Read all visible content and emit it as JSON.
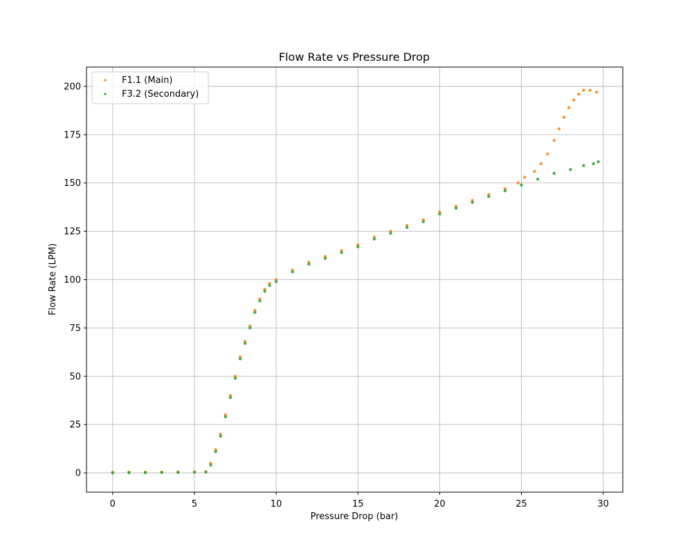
{
  "chart_data": {
    "type": "scatter",
    "title": "Flow Rate vs Pressure Drop",
    "xlabel": "Pressure Drop (bar)",
    "ylabel": "Flow Rate (LPM)",
    "xlim": [
      -1.6,
      31.2
    ],
    "ylim": [
      -10,
      210
    ],
    "xticks": [
      0,
      5,
      10,
      15,
      20,
      25,
      30
    ],
    "yticks": [
      0,
      25,
      50,
      75,
      100,
      125,
      150,
      175,
      200
    ],
    "grid": true,
    "legend_position": "upper-left",
    "series": [
      {
        "name": "F1.1 (Main)",
        "color": "#ff7f0e",
        "points": [
          [
            0.0,
            0.3
          ],
          [
            1.0,
            0.4
          ],
          [
            2.0,
            0.4
          ],
          [
            3.0,
            0.4
          ],
          [
            4.0,
            0.5
          ],
          [
            5.0,
            0.5
          ],
          [
            5.7,
            0.6
          ],
          [
            6.0,
            5
          ],
          [
            6.3,
            12
          ],
          [
            6.6,
            20
          ],
          [
            6.9,
            30
          ],
          [
            7.2,
            40
          ],
          [
            7.5,
            50
          ],
          [
            7.8,
            60
          ],
          [
            8.1,
            68
          ],
          [
            8.4,
            76
          ],
          [
            8.7,
            84
          ],
          [
            9.0,
            90
          ],
          [
            9.3,
            95
          ],
          [
            9.6,
            98
          ],
          [
            10.0,
            100
          ],
          [
            11.0,
            105
          ],
          [
            12.0,
            109
          ],
          [
            13.0,
            112
          ],
          [
            14.0,
            115
          ],
          [
            15.0,
            118
          ],
          [
            16.0,
            122
          ],
          [
            17.0,
            125
          ],
          [
            18.0,
            128
          ],
          [
            19.0,
            131
          ],
          [
            20.0,
            135
          ],
          [
            21.0,
            138
          ],
          [
            22.0,
            141
          ],
          [
            23.0,
            144
          ],
          [
            24.0,
            147
          ],
          [
            24.8,
            150
          ],
          [
            25.2,
            153
          ],
          [
            25.8,
            156
          ],
          [
            26.2,
            160
          ],
          [
            26.6,
            165
          ],
          [
            27.0,
            172
          ],
          [
            27.3,
            178
          ],
          [
            27.6,
            184
          ],
          [
            27.9,
            189
          ],
          [
            28.2,
            193
          ],
          [
            28.5,
            196
          ],
          [
            28.8,
            198
          ],
          [
            29.2,
            198
          ],
          [
            29.6,
            197
          ]
        ]
      },
      {
        "name": "F3.2 (Secondary)",
        "color": "#2ca02c",
        "points": [
          [
            0.0,
            0.0
          ],
          [
            1.0,
            0.1
          ],
          [
            2.0,
            0.1
          ],
          [
            3.0,
            0.2
          ],
          [
            4.0,
            0.2
          ],
          [
            5.0,
            0.3
          ],
          [
            5.7,
            0.4
          ],
          [
            6.0,
            4
          ],
          [
            6.3,
            11
          ],
          [
            6.6,
            19
          ],
          [
            6.9,
            29
          ],
          [
            7.2,
            39
          ],
          [
            7.5,
            49
          ],
          [
            7.8,
            59
          ],
          [
            8.1,
            67
          ],
          [
            8.4,
            75
          ],
          [
            8.7,
            83
          ],
          [
            9.0,
            89
          ],
          [
            9.3,
            94
          ],
          [
            9.6,
            97
          ],
          [
            10.0,
            99
          ],
          [
            11.0,
            104
          ],
          [
            12.0,
            108
          ],
          [
            13.0,
            111
          ],
          [
            14.0,
            114
          ],
          [
            15.0,
            117
          ],
          [
            16.0,
            121
          ],
          [
            17.0,
            124
          ],
          [
            18.0,
            127
          ],
          [
            19.0,
            130
          ],
          [
            20.0,
            134
          ],
          [
            21.0,
            137
          ],
          [
            22.0,
            140
          ],
          [
            23.0,
            143
          ],
          [
            24.0,
            146
          ],
          [
            25.0,
            149
          ],
          [
            26.0,
            152
          ],
          [
            27.0,
            155
          ],
          [
            28.0,
            157
          ],
          [
            28.8,
            159
          ],
          [
            29.4,
            160
          ],
          [
            29.7,
            161
          ]
        ]
      }
    ]
  }
}
